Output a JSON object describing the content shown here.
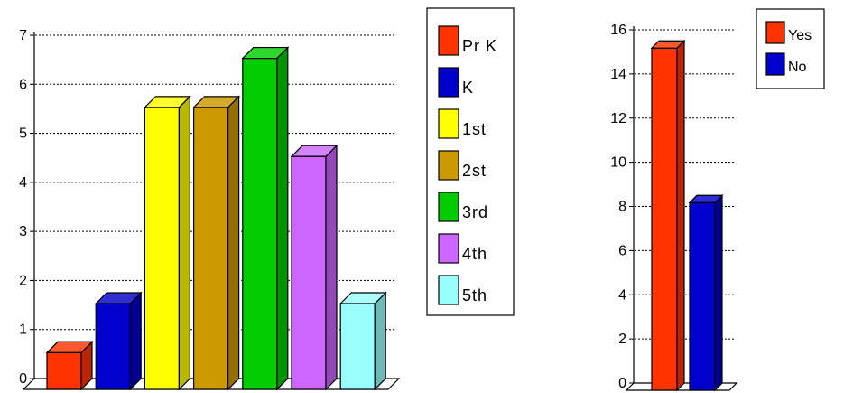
{
  "chart_data": [
    {
      "type": "bar",
      "title": "",
      "xlabel": "",
      "ylabel": "",
      "ylim": [
        0,
        7
      ],
      "yticks": [
        0,
        1,
        2,
        3,
        4,
        5,
        6,
        7
      ],
      "grid": true,
      "legend_position": "right",
      "style": "3d",
      "series": [
        {
          "name": "Pr K",
          "value": 0.75,
          "color": "#ff3300"
        },
        {
          "name": "K",
          "value": 1.75,
          "color": "#0000cc"
        },
        {
          "name": "1st",
          "value": 5.75,
          "color": "#ffff00"
        },
        {
          "name": "2st",
          "value": 5.75,
          "color": "#cc9900"
        },
        {
          "name": "3rd",
          "value": 6.75,
          "color": "#00cc00"
        },
        {
          "name": "4th",
          "value": 4.75,
          "color": "#cc66ff"
        },
        {
          "name": "5th",
          "value": 1.75,
          "color": "#99ffff"
        }
      ]
    },
    {
      "type": "bar",
      "title": "",
      "xlabel": "",
      "ylabel": "",
      "ylim": [
        0,
        16
      ],
      "yticks": [
        0,
        2,
        4,
        6,
        8,
        10,
        12,
        14,
        16
      ],
      "grid": true,
      "legend_position": "top-right",
      "style": "3d",
      "series": [
        {
          "name": "Yes",
          "value": 15.5,
          "color": "#ff3300"
        },
        {
          "name": "No",
          "value": 8.5,
          "color": "#0000cc"
        }
      ]
    }
  ]
}
